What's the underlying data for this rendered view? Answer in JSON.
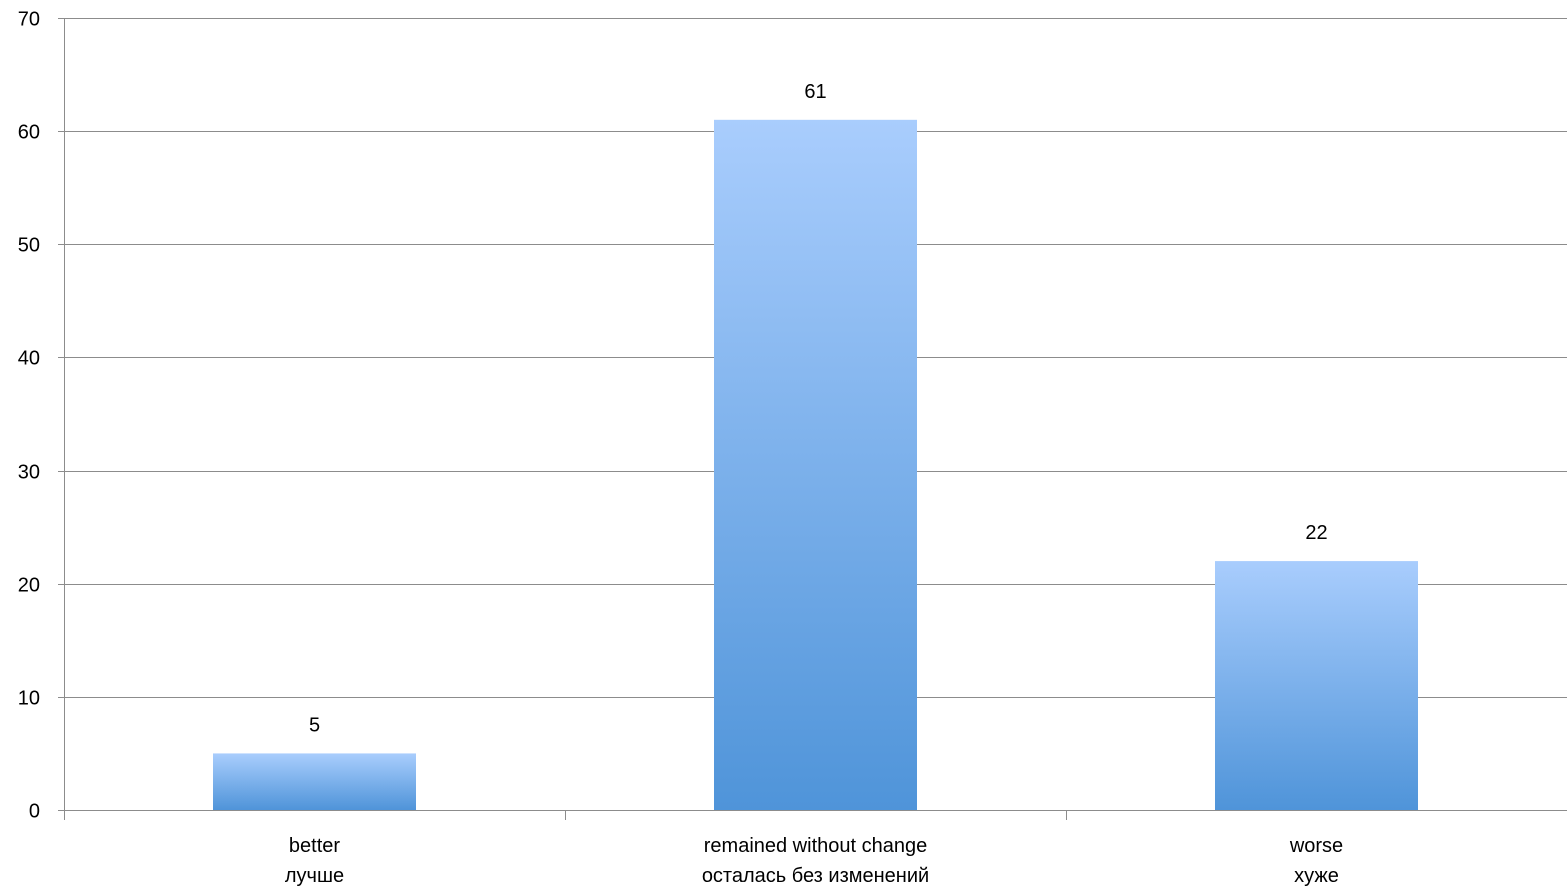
{
  "chart_data": {
    "type": "bar",
    "categories": [
      [
        "better",
        "лучше"
      ],
      [
        "remained without change",
        "осталась без изменений"
      ],
      [
        "worse",
        "хуже"
      ]
    ],
    "values": [
      5,
      61,
      22
    ],
    "data_labels": [
      "5",
      "61",
      "22"
    ],
    "yticks": [
      "0",
      "10",
      "20",
      "30",
      "40",
      "50",
      "60",
      "70"
    ],
    "ylim": [
      0,
      70
    ],
    "grid": true,
    "legend": "none",
    "title": "",
    "xlabel": "",
    "ylabel": "",
    "colors": {
      "bar_top": "#a9cdfd",
      "bar_bottom": "#4f94d9",
      "gridline": "#8c8c8c",
      "text": "#000000"
    }
  }
}
